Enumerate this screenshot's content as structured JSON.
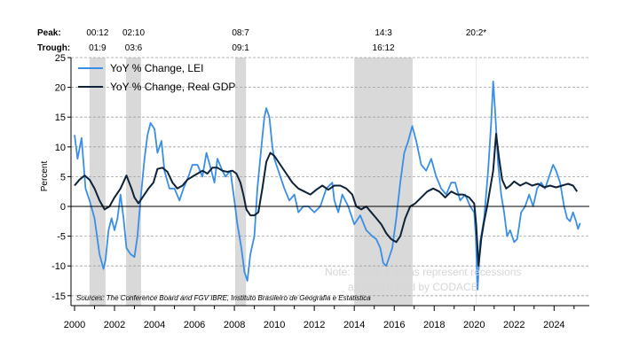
{
  "chart_data": {
    "type": "line",
    "ylabel": "Percent",
    "ylim": [
      -15,
      25
    ],
    "yticks": [
      25,
      20,
      15,
      10,
      5,
      0,
      -5,
      -10,
      -15
    ],
    "xlim": [
      2000,
      2025.3
    ],
    "xticks": [
      2000,
      2002,
      2004,
      2006,
      2008,
      2010,
      2012,
      2014,
      2016,
      2018,
      2020,
      2022,
      2024
    ],
    "grid": "horizontal dashed",
    "legend_position": "top-left",
    "header_labels": {
      "peak": "Peak:",
      "trough": "Trough:"
    },
    "recessions": [
      {
        "start": 2000.75,
        "end": 2001.55,
        "peak_label": "00:12",
        "trough_label": "01:9"
      },
      {
        "start": 2002.58,
        "end": 2003.33,
        "peak_label": "02:10",
        "trough_label": "03:6"
      },
      {
        "start": 2008.04,
        "end": 2008.58,
        "peak_label": "08:7",
        "trough_label": "09:1"
      },
      {
        "start": 2014.0,
        "end": 2016.92,
        "peak_label": "14:3",
        "trough_label": "16:12"
      },
      {
        "start": 2020.08,
        "end": 2020.12,
        "peak_label": "20:2*",
        "trough_label": ""
      }
    ],
    "series": [
      {
        "name": "YoY % Change, LEI",
        "color": "#3a8ee6",
        "points": [
          [
            2000.0,
            12
          ],
          [
            2000.15,
            8
          ],
          [
            2000.35,
            11.5
          ],
          [
            2000.55,
            3
          ],
          [
            2000.75,
            1
          ],
          [
            2001.0,
            -2
          ],
          [
            2001.25,
            -8
          ],
          [
            2001.45,
            -10.5
          ],
          [
            2001.55,
            -9
          ],
          [
            2001.7,
            -4
          ],
          [
            2001.85,
            -2
          ],
          [
            2002.0,
            -4
          ],
          [
            2002.15,
            -2
          ],
          [
            2002.3,
            2
          ],
          [
            2002.45,
            -2
          ],
          [
            2002.6,
            -7
          ],
          [
            2002.8,
            -8
          ],
          [
            2003.0,
            -8.5
          ],
          [
            2003.15,
            -5
          ],
          [
            2003.3,
            1
          ],
          [
            2003.5,
            8
          ],
          [
            2003.65,
            12
          ],
          [
            2003.8,
            14
          ],
          [
            2004.0,
            13
          ],
          [
            2004.15,
            9
          ],
          [
            2004.35,
            11
          ],
          [
            2004.5,
            6
          ],
          [
            2004.75,
            3
          ],
          [
            2005.0,
            3
          ],
          [
            2005.25,
            1
          ],
          [
            2005.45,
            3
          ],
          [
            2005.7,
            5
          ],
          [
            2005.9,
            7
          ],
          [
            2006.15,
            7
          ],
          [
            2006.4,
            5
          ],
          [
            2006.6,
            9
          ],
          [
            2006.85,
            6
          ],
          [
            2007.0,
            4
          ],
          [
            2007.15,
            8
          ],
          [
            2007.4,
            6
          ],
          [
            2007.55,
            5
          ],
          [
            2007.8,
            6
          ],
          [
            2008.0,
            1
          ],
          [
            2008.15,
            -3
          ],
          [
            2008.35,
            -7
          ],
          [
            2008.5,
            -11
          ],
          [
            2008.65,
            -12.5
          ],
          [
            2008.8,
            -8
          ],
          [
            2009.0,
            -5
          ],
          [
            2009.15,
            3
          ],
          [
            2009.35,
            10
          ],
          [
            2009.5,
            15
          ],
          [
            2009.6,
            16.5
          ],
          [
            2009.75,
            15
          ],
          [
            2009.9,
            10
          ],
          [
            2010.0,
            8
          ],
          [
            2010.3,
            5
          ],
          [
            2010.5,
            3
          ],
          [
            2010.75,
            1
          ],
          [
            2011.0,
            2
          ],
          [
            2011.2,
            -1
          ],
          [
            2011.45,
            0
          ],
          [
            2011.7,
            0
          ],
          [
            2012.0,
            -1
          ],
          [
            2012.3,
            0
          ],
          [
            2012.6,
            3
          ],
          [
            2012.9,
            4
          ],
          [
            2013.0,
            1
          ],
          [
            2013.2,
            -1
          ],
          [
            2013.4,
            2
          ],
          [
            2013.7,
            0
          ],
          [
            2014.0,
            -3
          ],
          [
            2014.3,
            -1.5
          ],
          [
            2014.6,
            -4
          ],
          [
            2014.9,
            -5
          ],
          [
            2015.1,
            -5.5
          ],
          [
            2015.3,
            -7
          ],
          [
            2015.45,
            -9.5
          ],
          [
            2015.6,
            -10
          ],
          [
            2015.75,
            -8.5
          ],
          [
            2015.9,
            -7
          ],
          [
            2016.1,
            -2
          ],
          [
            2016.3,
            4
          ],
          [
            2016.5,
            9
          ],
          [
            2016.7,
            11
          ],
          [
            2016.9,
            13.5
          ],
          [
            2017.1,
            11
          ],
          [
            2017.35,
            7
          ],
          [
            2017.6,
            6
          ],
          [
            2017.85,
            8
          ],
          [
            2018.1,
            5
          ],
          [
            2018.35,
            3
          ],
          [
            2018.6,
            2
          ],
          [
            2018.85,
            4
          ],
          [
            2019.05,
            4
          ],
          [
            2019.3,
            1
          ],
          [
            2019.55,
            2
          ],
          [
            2019.8,
            0
          ],
          [
            2020.0,
            -1
          ],
          [
            2020.08,
            -5
          ],
          [
            2020.17,
            -14
          ],
          [
            2020.3,
            -6
          ],
          [
            2020.5,
            -2
          ],
          [
            2020.7,
            6
          ],
          [
            2020.85,
            14
          ],
          [
            2020.95,
            21
          ],
          [
            2021.05,
            16
          ],
          [
            2021.2,
            7
          ],
          [
            2021.35,
            2
          ],
          [
            2021.5,
            -1
          ],
          [
            2021.65,
            -5
          ],
          [
            2021.8,
            -4
          ],
          [
            2022.0,
            -6
          ],
          [
            2022.15,
            -5.5
          ],
          [
            2022.35,
            -1
          ],
          [
            2022.55,
            0
          ],
          [
            2022.75,
            2
          ],
          [
            2022.95,
            0
          ],
          [
            2023.15,
            3
          ],
          [
            2023.35,
            4
          ],
          [
            2023.55,
            3
          ],
          [
            2023.75,
            5
          ],
          [
            2023.95,
            7
          ],
          [
            2024.1,
            6
          ],
          [
            2024.3,
            4
          ],
          [
            2024.5,
            0
          ],
          [
            2024.65,
            -2
          ],
          [
            2024.8,
            -2.5
          ],
          [
            2024.95,
            -1
          ],
          [
            2025.1,
            -2.5
          ],
          [
            2025.2,
            -3.8
          ],
          [
            2025.3,
            -2.8
          ]
        ]
      },
      {
        "name": "YoY % Change, Real GDP",
        "color": "#0e2238",
        "points": [
          [
            2000.0,
            3.5
          ],
          [
            2000.25,
            4.5
          ],
          [
            2000.5,
            5.2
          ],
          [
            2000.75,
            4.5
          ],
          [
            2001.0,
            3
          ],
          [
            2001.25,
            1
          ],
          [
            2001.5,
            -0.5
          ],
          [
            2001.75,
            0
          ],
          [
            2002.0,
            1.5
          ],
          [
            2002.3,
            3
          ],
          [
            2002.6,
            5.2
          ],
          [
            2002.85,
            3
          ],
          [
            2003.0,
            1.5
          ],
          [
            2003.2,
            0.5
          ],
          [
            2003.4,
            1.5
          ],
          [
            2003.7,
            3
          ],
          [
            2003.95,
            4
          ],
          [
            2004.15,
            6.3
          ],
          [
            2004.4,
            6.5
          ],
          [
            2004.65,
            5.8
          ],
          [
            2004.9,
            4
          ],
          [
            2005.15,
            3
          ],
          [
            2005.4,
            3.5
          ],
          [
            2005.65,
            4.5
          ],
          [
            2005.9,
            5
          ],
          [
            2006.15,
            5.5
          ],
          [
            2006.4,
            6
          ],
          [
            2006.65,
            5.5
          ],
          [
            2006.9,
            6.5
          ],
          [
            2007.15,
            6.5
          ],
          [
            2007.4,
            6
          ],
          [
            2007.65,
            5.8
          ],
          [
            2007.9,
            6
          ],
          [
            2008.1,
            5.5
          ],
          [
            2008.3,
            4
          ],
          [
            2008.45,
            2
          ],
          [
            2008.6,
            -0.5
          ],
          [
            2008.8,
            -1.5
          ],
          [
            2009.0,
            -1.5
          ],
          [
            2009.2,
            -1
          ],
          [
            2009.4,
            3
          ],
          [
            2009.6,
            7.5
          ],
          [
            2009.8,
            9
          ],
          [
            2010.0,
            8.5
          ],
          [
            2010.3,
            7
          ],
          [
            2010.6,
            5.5
          ],
          [
            2010.9,
            4
          ],
          [
            2011.2,
            3
          ],
          [
            2011.5,
            2.5
          ],
          [
            2011.8,
            2
          ],
          [
            2012.1,
            2.8
          ],
          [
            2012.4,
            3.5
          ],
          [
            2012.7,
            2.8
          ],
          [
            2013.0,
            3.5
          ],
          [
            2013.3,
            3.5
          ],
          [
            2013.6,
            3
          ],
          [
            2013.9,
            2
          ],
          [
            2014.1,
            0
          ],
          [
            2014.35,
            -0.5
          ],
          [
            2014.6,
            0
          ],
          [
            2014.85,
            -1
          ],
          [
            2015.1,
            -2
          ],
          [
            2015.35,
            -3
          ],
          [
            2015.6,
            -4.5
          ],
          [
            2015.85,
            -5.5
          ],
          [
            2016.1,
            -6
          ],
          [
            2016.3,
            -5
          ],
          [
            2016.55,
            -2
          ],
          [
            2016.8,
            0
          ],
          [
            2017.05,
            0.5
          ],
          [
            2017.35,
            1.5
          ],
          [
            2017.65,
            2.5
          ],
          [
            2017.95,
            3
          ],
          [
            2018.25,
            2.5
          ],
          [
            2018.55,
            1.5
          ],
          [
            2018.85,
            2.5
          ],
          [
            2019.15,
            2
          ],
          [
            2019.45,
            2
          ],
          [
            2019.75,
            1.5
          ],
          [
            2020.0,
            0.5
          ],
          [
            2020.1,
            -3
          ],
          [
            2020.22,
            -10
          ],
          [
            2020.35,
            -5.5
          ],
          [
            2020.5,
            -2.5
          ],
          [
            2020.65,
            0
          ],
          [
            2020.8,
            3
          ],
          [
            2020.95,
            6
          ],
          [
            2021.1,
            12.2
          ],
          [
            2021.25,
            8
          ],
          [
            2021.4,
            4.5
          ],
          [
            2021.6,
            3
          ],
          [
            2021.8,
            3.5
          ],
          [
            2022.0,
            4.2
          ],
          [
            2022.3,
            3.5
          ],
          [
            2022.6,
            4
          ],
          [
            2022.9,
            3.5
          ],
          [
            2023.2,
            3.8
          ],
          [
            2023.5,
            3.2
          ],
          [
            2023.8,
            3.5
          ],
          [
            2024.1,
            3.2
          ],
          [
            2024.4,
            3.5
          ],
          [
            2024.7,
            3.8
          ],
          [
            2024.95,
            3.5
          ],
          [
            2025.15,
            2.5
          ]
        ]
      }
    ],
    "annotations": {
      "note_line1": "Note: Shaded areas represent recessions",
      "note_line2": "as determined by CODACE",
      "source": "Sources: The Conference Board and FGV IBRE, Instituto Brasileiro de Geografia e Estatistica"
    }
  }
}
